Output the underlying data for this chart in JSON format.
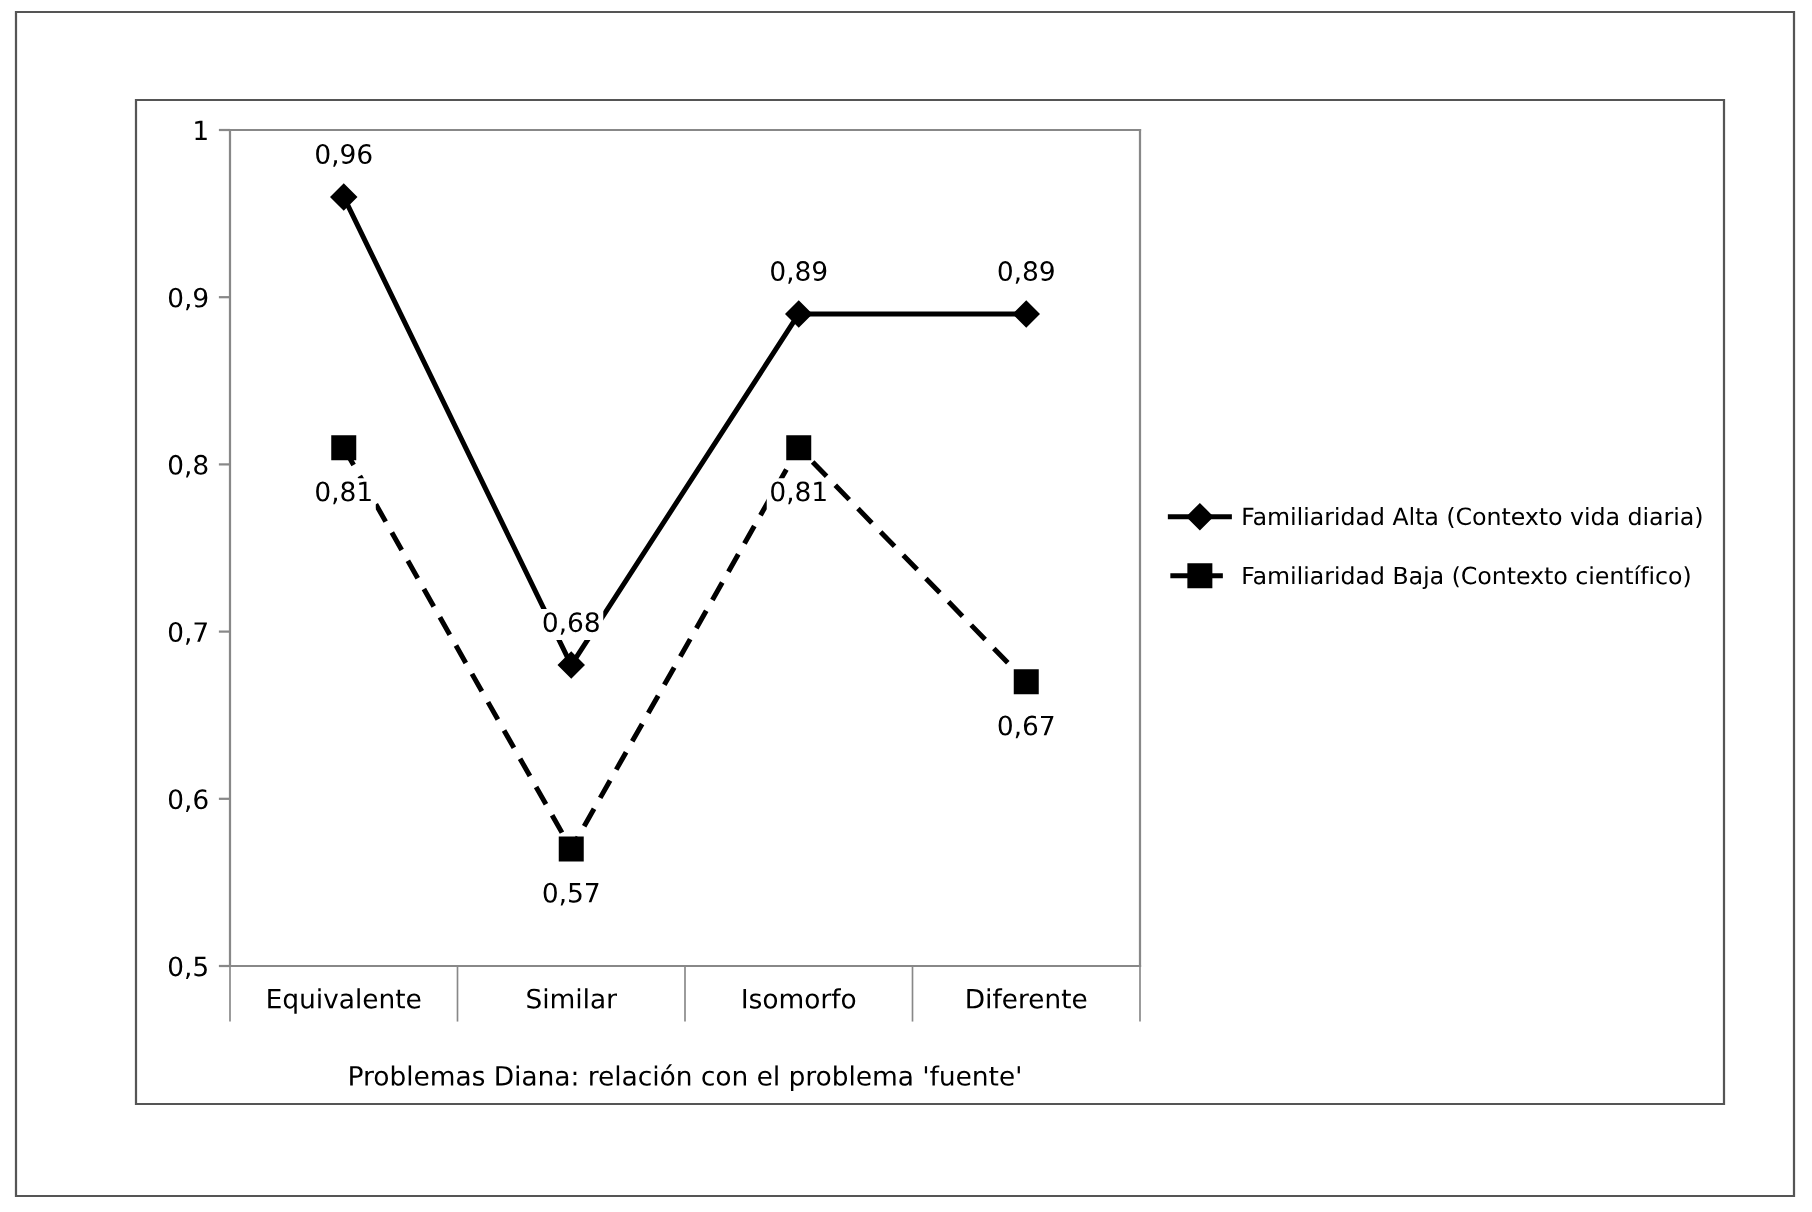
{
  "chart_data": {
    "type": "line",
    "xlabel": "Problemas Diana: relación con el problema 'fuente'",
    "categories": [
      "Equivalente",
      "Similar",
      "Isomorfo",
      "Diferente"
    ],
    "series": [
      {
        "name": "Familiaridad Alta (Contexto vida diaria)",
        "color": "#000000",
        "values": [
          0.96,
          0.68,
          0.89,
          0.89
        ],
        "value_labels": [
          "0,96",
          "0,68",
          "0,89",
          "0,89"
        ],
        "marker": "diamond",
        "line_style": "solid"
      },
      {
        "name": "Familiaridad Baja (Contexto científico)",
        "color": "#000000",
        "values": [
          0.81,
          0.57,
          0.81,
          0.67
        ],
        "value_labels": [
          "0,81",
          "0,57",
          "0,81",
          "0,67"
        ],
        "marker": "square",
        "line_style": "dashed"
      }
    ],
    "ylim": [
      0.5,
      1
    ],
    "yticks": [
      {
        "value": 0.5,
        "label": "0,5"
      },
      {
        "value": 0.6,
        "label": "0,6"
      },
      {
        "value": 0.7,
        "label": "0,7"
      },
      {
        "value": 0.8,
        "label": "0,8"
      },
      {
        "value": 0.9,
        "label": "0,9"
      },
      {
        "value": 1,
        "label": "1"
      }
    ],
    "grid": false,
    "legend": "right"
  }
}
